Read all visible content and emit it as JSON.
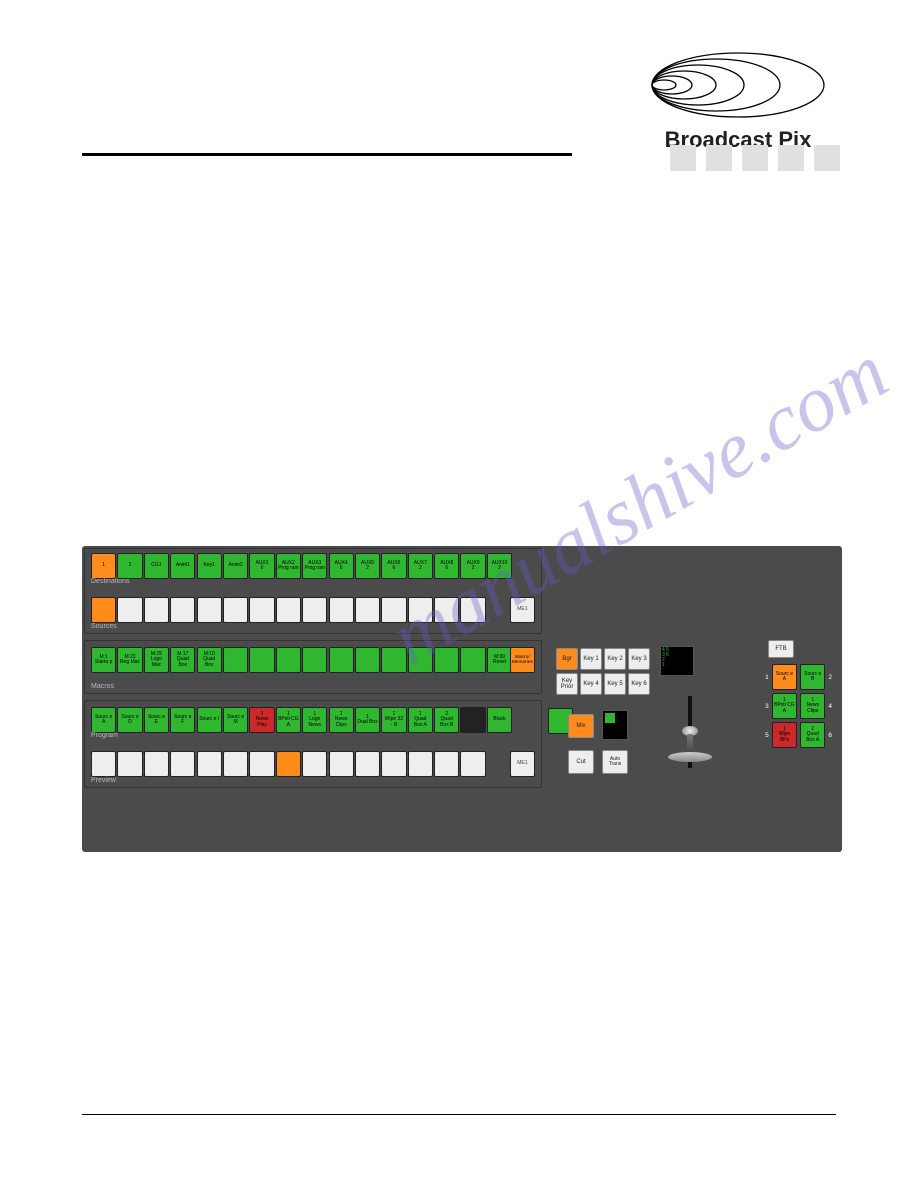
{
  "brand": "Broadcast Pix",
  "watermark": "manualshive.com",
  "destinations": {
    "label": "Destinations",
    "buttons": [
      {
        "t": "1",
        "c": "orange"
      },
      {
        "t": "2",
        "c": "green"
      },
      {
        "t": "CG1",
        "c": "green"
      },
      {
        "t": "Anim1",
        "c": "green"
      },
      {
        "t": "Key1",
        "c": "green"
      },
      {
        "t": "Anim2",
        "c": "green"
      },
      {
        "t": "AUX1\n6",
        "c": "green"
      },
      {
        "t": "AUX2\nProg ram",
        "c": "green"
      },
      {
        "t": "AUX3\nProg ram",
        "c": "green"
      },
      {
        "t": "AUX4\n6",
        "c": "green"
      },
      {
        "t": "AUX5\n2",
        "c": "green"
      },
      {
        "t": "AUX6\n6",
        "c": "green"
      },
      {
        "t": "AUX7\n2",
        "c": "green"
      },
      {
        "t": "AUX8\n6",
        "c": "green"
      },
      {
        "t": "AUX9\n2",
        "c": "green"
      },
      {
        "t": "AUX10\n2",
        "c": "green"
      }
    ]
  },
  "sources": {
    "label": "Sources",
    "me_label": "ME1"
  },
  "macros": {
    "label": "Macros",
    "buttons": [
      {
        "t": "M:1\nStartu p",
        "c": "green"
      },
      {
        "t": "M:23\nReg Mac",
        "c": "green"
      },
      {
        "t": "M:25\nLogo Mac",
        "c": "green"
      },
      {
        "t": "M:17\nQuad Box",
        "c": "green"
      },
      {
        "t": "M:10\nQuad Box",
        "c": "green"
      },
      {
        "t": "",
        "c": "green"
      },
      {
        "t": "",
        "c": "green"
      },
      {
        "t": "",
        "c": "green"
      },
      {
        "t": "",
        "c": "green"
      },
      {
        "t": "",
        "c": "green"
      },
      {
        "t": "",
        "c": "green"
      },
      {
        "t": "",
        "c": "green"
      },
      {
        "t": "",
        "c": "green"
      },
      {
        "t": "",
        "c": "green"
      },
      {
        "t": "",
        "c": "green"
      },
      {
        "t": "M:99\nReset",
        "c": "green"
      }
    ],
    "memory_btn": "Macro/ Memories"
  },
  "program": {
    "label": "Program",
    "buttons": [
      {
        "t": "Sourc e A",
        "c": "green"
      },
      {
        "t": "Sourc e D",
        "c": "green"
      },
      {
        "t": "Sourc e E",
        "c": "green"
      },
      {
        "t": "Sourc e F",
        "c": "green"
      },
      {
        "t": "Sourc e I",
        "c": "green"
      },
      {
        "t": "Sourc e M",
        "c": "green"
      },
      {
        "t": "1\nNews Play",
        "c": "red"
      },
      {
        "t": "1\nBPsti CG A",
        "c": "green"
      },
      {
        "t": "1\nLogo News",
        "c": "green"
      },
      {
        "t": "1\nNews Clips",
        "c": "green"
      },
      {
        "t": "1\nDual Box",
        "c": "green"
      },
      {
        "t": "1\nWipe 32 - N",
        "c": "green"
      },
      {
        "t": "1\nQuad Box A",
        "c": "green"
      },
      {
        "t": "2\nQuad Box B",
        "c": "green"
      },
      {
        "t": "",
        "c": "black"
      },
      {
        "t": "Black",
        "c": "green"
      }
    ],
    "green_side_btn": ""
  },
  "preview": {
    "label": "Preview",
    "me_label": "ME1"
  },
  "nextTrans": {
    "row1": [
      "Bgr",
      "Key 1",
      "Key 2",
      "Key 3"
    ],
    "row2": [
      "Key Prior",
      "Key 4",
      "Key 5",
      "Key 6"
    ],
    "mix": "Mix",
    "cut": "Cut",
    "auto": "Auto Trans"
  },
  "ftb": "FTB",
  "dsk": {
    "sideNums": [
      "1",
      "2",
      "3",
      "4",
      "5",
      "6"
    ],
    "buttons": [
      {
        "t": "Sourc e A",
        "c": "orange"
      },
      {
        "t": "Sourc e B",
        "c": "green"
      },
      {
        "t": "1\nBPsti CG A",
        "c": "green"
      },
      {
        "t": "1\nNews Clips",
        "c": "green"
      },
      {
        "t": "1\nWipe BPs",
        "c": "red"
      },
      {
        "t": "2\nQuad Box A",
        "c": "green"
      }
    ]
  },
  "colors": {
    "panel_bg": "#4b4b4b",
    "green": "#2fb82f",
    "orange": "#ff8c1a",
    "red": "#cc2a2a",
    "black": "#222222",
    "white": "#eeeeee"
  }
}
